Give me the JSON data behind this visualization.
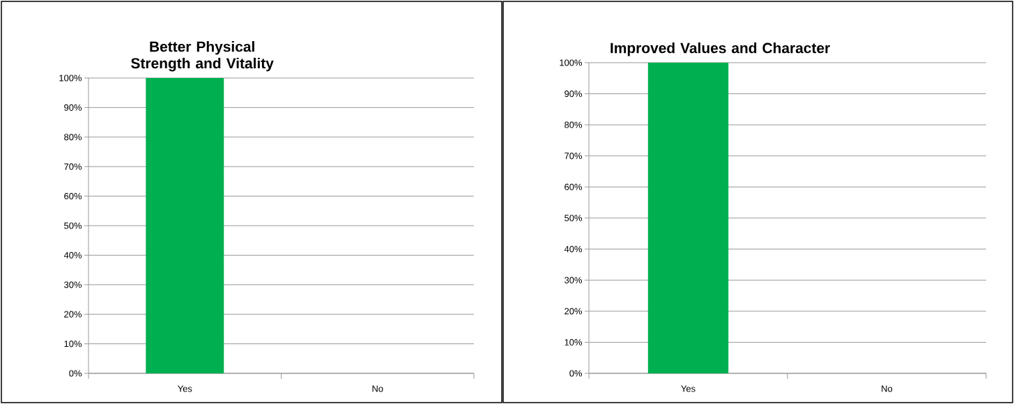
{
  "chart_data": [
    {
      "type": "bar",
      "title": "Better Physical Strength and Vitality",
      "categories": [
        "Yes",
        "No"
      ],
      "values": [
        100,
        0
      ],
      "color": "#00b050",
      "ylim": [
        0,
        100
      ],
      "yticks": [
        {
          "value": 0,
          "label": "0%"
        },
        {
          "value": 10,
          "label": "10%"
        },
        {
          "value": 20,
          "label": "20%"
        },
        {
          "value": 30,
          "label": "30%"
        },
        {
          "value": 40,
          "label": "40%"
        },
        {
          "value": 50,
          "label": "50%"
        },
        {
          "value": 60,
          "label": "60%"
        },
        {
          "value": 70,
          "label": "70%"
        },
        {
          "value": 80,
          "label": "80%"
        },
        {
          "value": 90,
          "label": "90%"
        },
        {
          "value": 100,
          "label": "100%"
        }
      ],
      "grid": "y"
    },
    {
      "type": "bar",
      "title": "Improved Values and Character",
      "categories": [
        "Yes",
        "No"
      ],
      "values": [
        100,
        0
      ],
      "color": "#00b050",
      "ylim": [
        0,
        100
      ],
      "yticks": [
        {
          "value": 0,
          "label": "0%"
        },
        {
          "value": 10,
          "label": "10%"
        },
        {
          "value": 20,
          "label": "20%"
        },
        {
          "value": 30,
          "label": "30%"
        },
        {
          "value": 40,
          "label": "40%"
        },
        {
          "value": 50,
          "label": "50%"
        },
        {
          "value": 60,
          "label": "60%"
        },
        {
          "value": 70,
          "label": "70%"
        },
        {
          "value": 80,
          "label": "80%"
        },
        {
          "value": 90,
          "label": "90%"
        },
        {
          "value": 100,
          "label": "100%"
        }
      ],
      "grid": "y"
    }
  ]
}
